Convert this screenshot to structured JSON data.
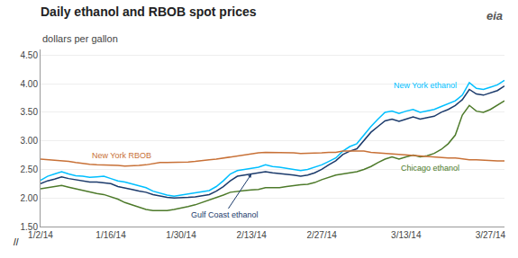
{
  "chart_data": {
    "type": "line",
    "title": "Daily ethanol and RBOB spot prices",
    "subtitle": "dollars per gallon",
    "annotations": [
      "//",
      "eia"
    ],
    "categories": [
      "1/2/14",
      null,
      null,
      null,
      null,
      null,
      null,
      null,
      null,
      null,
      "1/16/14",
      null,
      null,
      null,
      null,
      null,
      null,
      null,
      null,
      null,
      "1/30/14",
      null,
      null,
      null,
      null,
      null,
      null,
      null,
      null,
      null,
      "2/13/14",
      null,
      null,
      null,
      null,
      null,
      null,
      null,
      null,
      null,
      "2/27/14",
      null,
      null,
      null,
      null,
      null,
      null,
      null,
      null,
      null,
      null,
      null,
      "3/13/14",
      null,
      null,
      null,
      null,
      null,
      null,
      null,
      null,
      null,
      null,
      null,
      "3/27/14",
      null,
      null
    ],
    "series": [
      {
        "name": "New York ethanol",
        "color": "#00BFFF",
        "values": [
          2.31,
          2.38,
          2.42,
          2.46,
          2.42,
          2.39,
          2.38,
          2.36,
          2.37,
          2.38,
          2.34,
          2.3,
          2.28,
          2.25,
          2.22,
          2.18,
          2.12,
          2.08,
          2.05,
          2.03,
          2.05,
          2.06,
          2.09,
          2.11,
          2.13,
          2.2,
          2.3,
          2.42,
          2.48,
          2.5,
          2.52,
          2.54,
          2.58,
          2.55,
          2.54,
          2.52,
          2.5,
          2.48,
          2.5,
          2.54,
          2.58,
          2.64,
          2.7,
          2.82,
          2.9,
          2.95,
          3.1,
          3.25,
          3.38,
          3.5,
          3.52,
          3.48,
          3.52,
          3.55,
          3.5,
          3.52,
          3.55,
          3.6,
          3.65,
          3.7,
          3.8,
          4.02,
          3.92,
          3.9,
          3.94,
          3.98,
          4.06
        ]
      },
      {
        "name": "Gulf Coast ethanol",
        "color": "#1B3A6B",
        "values": [
          2.25,
          2.3,
          2.33,
          2.37,
          2.34,
          2.32,
          2.3,
          2.28,
          2.28,
          2.27,
          2.25,
          2.2,
          2.18,
          2.15,
          2.12,
          2.1,
          2.06,
          2.03,
          2.01,
          2.0,
          2.0,
          2.01,
          2.02,
          2.04,
          2.06,
          2.12,
          2.2,
          2.3,
          2.38,
          2.4,
          2.42,
          2.44,
          2.46,
          2.44,
          2.43,
          2.42,
          2.4,
          2.38,
          2.4,
          2.44,
          2.5,
          2.58,
          2.65,
          2.76,
          2.82,
          2.86,
          3.0,
          3.15,
          3.25,
          3.35,
          3.38,
          3.34,
          3.38,
          3.42,
          3.38,
          3.4,
          3.43,
          3.5,
          3.55,
          3.62,
          3.72,
          3.9,
          3.82,
          3.8,
          3.84,
          3.88,
          3.96
        ]
      },
      {
        "name": "Chicago ethanol",
        "color": "#4D7A2A",
        "values": [
          2.16,
          2.18,
          2.2,
          2.22,
          2.19,
          2.16,
          2.14,
          2.1,
          2.08,
          2.06,
          2.02,
          1.98,
          1.92,
          1.88,
          1.84,
          1.8,
          1.78,
          1.78,
          1.78,
          1.8,
          1.82,
          1.85,
          1.88,
          1.92,
          1.96,
          2.0,
          2.05,
          2.1,
          2.12,
          2.13,
          2.14,
          2.15,
          2.18,
          2.18,
          2.18,
          2.2,
          2.22,
          2.23,
          2.24,
          2.27,
          2.32,
          2.36,
          2.4,
          2.42,
          2.44,
          2.46,
          2.5,
          2.55,
          2.62,
          2.68,
          2.72,
          2.68,
          2.72,
          2.75,
          2.72,
          2.74,
          2.78,
          2.85,
          2.95,
          3.1,
          3.45,
          3.62,
          3.52,
          3.5,
          3.55,
          3.62,
          3.7
        ]
      },
      {
        "name": "New York RBOB",
        "color": "#C87137",
        "values": [
          2.68,
          2.67,
          2.66,
          2.66,
          2.64,
          2.62,
          2.6,
          2.59,
          2.58,
          2.58,
          2.58,
          2.57,
          2.56,
          2.56,
          2.57,
          2.58,
          2.6,
          2.62,
          2.62,
          2.62,
          2.62,
          2.63,
          2.64,
          2.66,
          2.67,
          2.68,
          2.7,
          2.72,
          2.74,
          2.76,
          2.78,
          2.79,
          2.8,
          2.8,
          2.8,
          2.8,
          2.79,
          2.78,
          2.78,
          2.78,
          2.79,
          2.8,
          2.8,
          2.82,
          2.82,
          2.82,
          2.82,
          2.8,
          2.79,
          2.78,
          2.78,
          2.76,
          2.75,
          2.74,
          2.73,
          2.73,
          2.72,
          2.7,
          2.7,
          2.7,
          2.68,
          2.67,
          2.67,
          2.66,
          2.65,
          2.65,
          2.65
        ]
      }
    ],
    "ylim": [
      1.5,
      4.6
    ],
    "yticks": [
      {
        "value": 1.5,
        "label": "1.50"
      },
      {
        "value": 2.0,
        "label": "2.00"
      },
      {
        "value": 2.5,
        "label": "2.50"
      },
      {
        "value": 3.0,
        "label": "3.00"
      },
      {
        "value": 3.5,
        "label": "3.50"
      },
      {
        "value": 4.0,
        "label": "4.00"
      },
      {
        "value": 4.5,
        "label": "4.50"
      }
    ],
    "grid": "y"
  }
}
